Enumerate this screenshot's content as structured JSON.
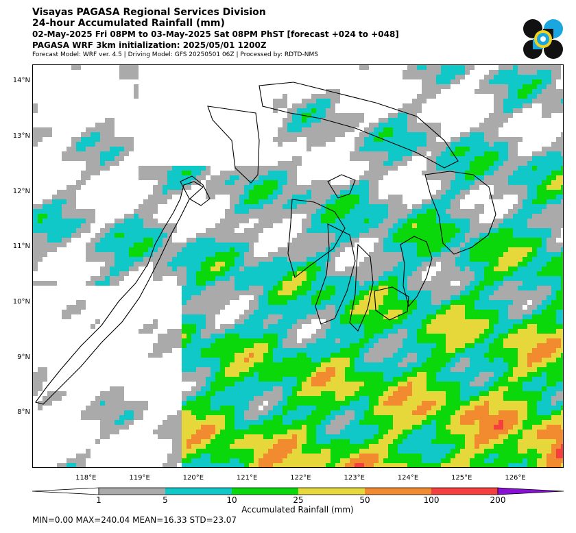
{
  "header": {
    "title": "Visayas PAGASA Regional Services Division",
    "subtitle": "24-hour Accumulated Rainfall (mm)",
    "period": "02-May-2025 Fri 08PM to 03-May-2025 Sat 08PM PhST [forecast +024 to +048]",
    "init": "PAGASA WRF 3km initialization: 2025/05/01 1200Z",
    "credits": "Forecast Model: WRF ver. 4.5 | Driving Model: GFS 20250501 06Z | Processed by: RDTD-NMS"
  },
  "logo": {
    "icon": "pagasa-logo-icon",
    "colors": {
      "dark": "#111111",
      "blue": "#1aa7e0",
      "yellow": "#f2d21c"
    }
  },
  "map": {
    "lon_range": [
      117.0,
      126.9
    ],
    "lat_range": [
      7.0,
      14.3
    ],
    "lat_labels": [
      "14°N",
      "13°N",
      "12°N",
      "11°N",
      "10°N",
      "9°N",
      "8°N"
    ],
    "lat_values": [
      14,
      13,
      12,
      11,
      10,
      9,
      8
    ],
    "lon_labels": [
      "118°E",
      "119°E",
      "120°E",
      "121°E",
      "122°E",
      "123°E",
      "124°E",
      "125°E",
      "126°E"
    ],
    "lon_values": [
      118,
      119,
      120,
      121,
      122,
      123,
      124,
      125,
      126
    ]
  },
  "colorbar": {
    "ticks": [
      "1",
      "5",
      "10",
      "25",
      "50",
      "100",
      "200"
    ],
    "colors": [
      "#ffffff",
      "#aaaaaa",
      "#10c8c8",
      "#0ad80a",
      "#e6d83a",
      "#f28a30",
      "#f53f3f",
      "#8a10d8"
    ],
    "label": "Accumulated Rainfall (mm)"
  },
  "stats": "MIN=0.00   MAX=240.04   MEAN=16.33   STD=23.07"
}
